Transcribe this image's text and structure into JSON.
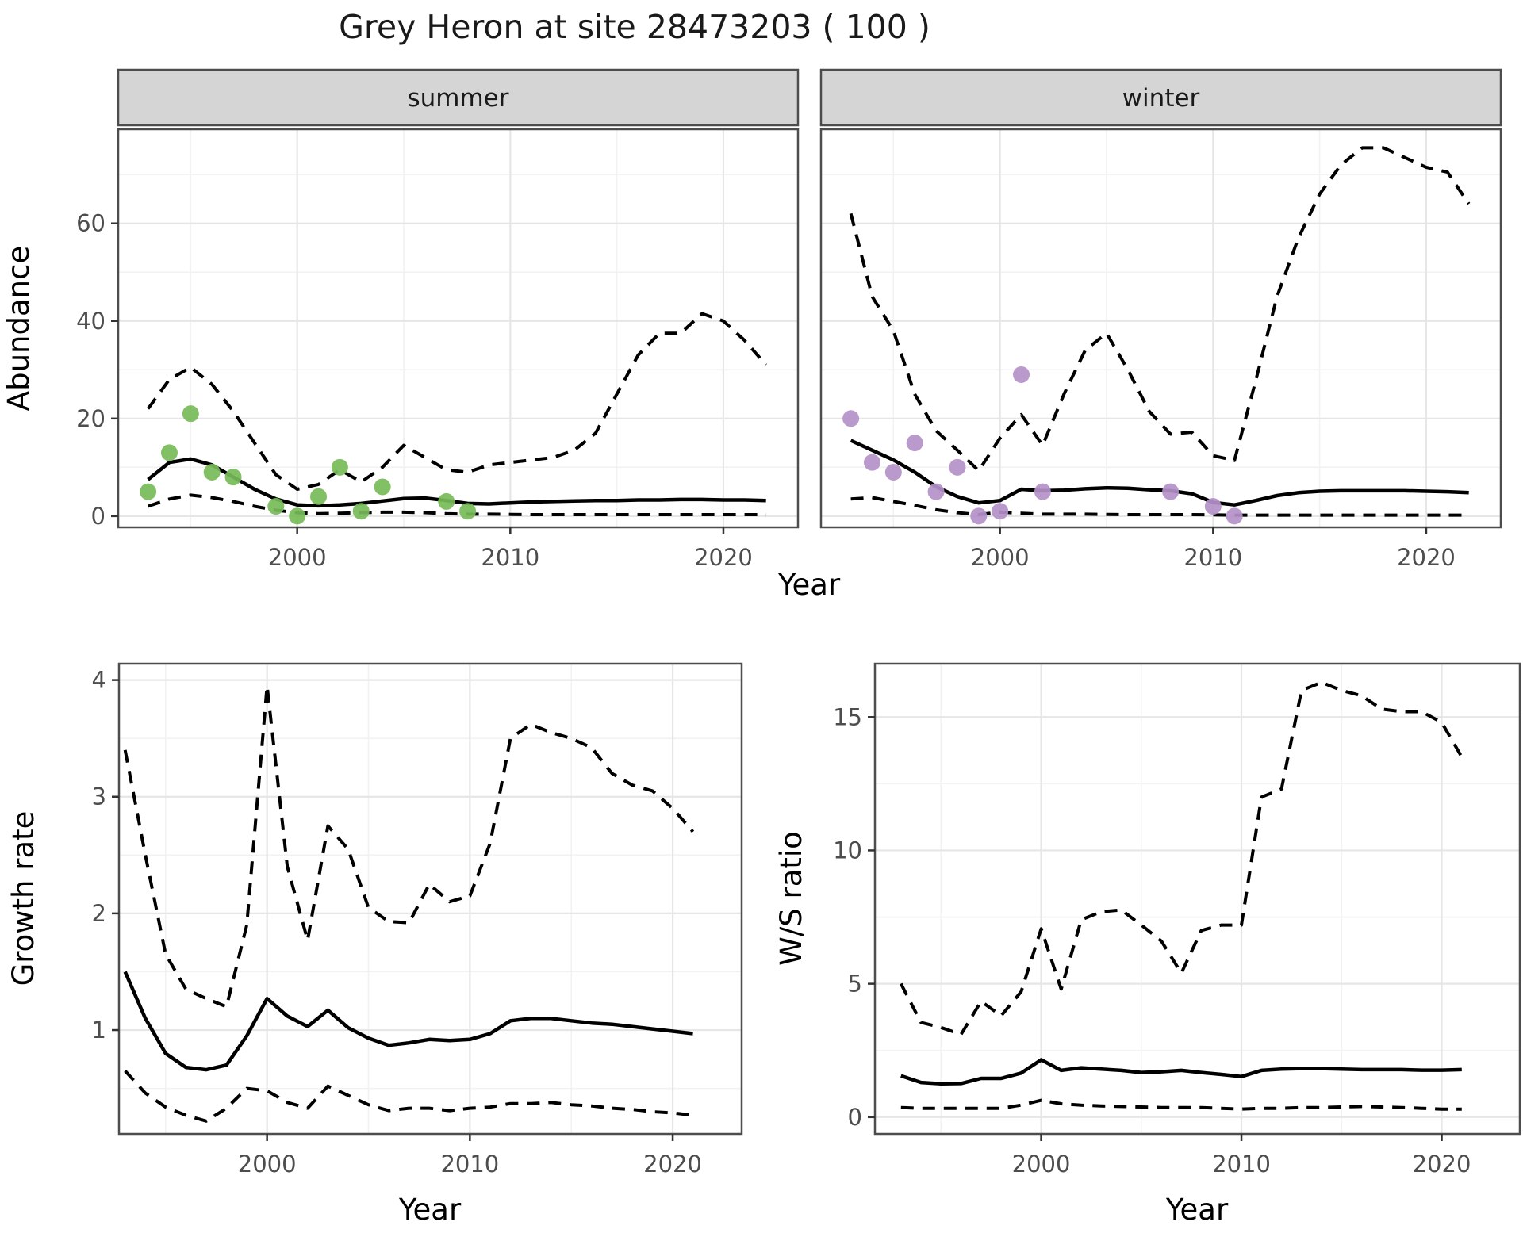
{
  "title": "Grey Heron at site 28473203 ( 100 )",
  "colors": {
    "summer_points": "#77BB58",
    "winter_points": "#B491C8",
    "line": "#000000",
    "strip_bg": "#D5D5D5",
    "panel_bg": "#FFFFFF",
    "grid_major": "#E6E6E6",
    "grid_minor": "#F2F2F2",
    "panel_border": "#4D4D4D",
    "tick_label": "#4D4D4D",
    "title_color": "#1A1A1A"
  },
  "axis_titles": {
    "top_x": "Year",
    "top_y": "Abundance",
    "bottom_left_x": "Year",
    "bottom_left_y": "Growth rate",
    "bottom_right_x": "Year",
    "bottom_right_y": "W/S ratio"
  },
  "chart_data": [
    {
      "type": "line",
      "facet_label": "summer",
      "xlabel": "Year",
      "ylabel": "Abundance",
      "x_ticks": [
        2000,
        2010,
        2020
      ],
      "y_ticks": [
        0,
        20,
        40,
        60
      ],
      "xlim": [
        1991.6,
        2023.5
      ],
      "ylim": [
        -2.3,
        79.3
      ],
      "legend": "none",
      "grid": true,
      "series": [
        {
          "name": "lower_ci",
          "style": "dashed",
          "x": [
            1993,
            1994,
            1995,
            1996,
            1997,
            1998,
            1999,
            2000,
            2001,
            2002,
            2003,
            2004,
            2005,
            2006,
            2007,
            2008,
            2009,
            2010,
            2011,
            2012,
            2013,
            2014,
            2015,
            2016,
            2017,
            2018,
            2019,
            2020,
            2021,
            2022
          ],
          "y": [
            2,
            3.5,
            4.3,
            3.8,
            3,
            2,
            1.2,
            0.7,
            0.5,
            0.6,
            0.7,
            0.8,
            0.8,
            0.7,
            0.5,
            0.4,
            0.4,
            0.35,
            0.3,
            0.3,
            0.3,
            0.3,
            0.3,
            0.3,
            0.3,
            0.3,
            0.3,
            0.3,
            0.3,
            0.3
          ]
        },
        {
          "name": "upper_ci",
          "style": "dashed",
          "x": [
            1993,
            1994,
            1995,
            1996,
            1997,
            1998,
            1999,
            2000,
            2001,
            2002,
            2003,
            2004,
            2005,
            2006,
            2007,
            2008,
            2009,
            2010,
            2011,
            2012,
            2013,
            2014,
            2015,
            2016,
            2017,
            2018,
            2019,
            2020,
            2021,
            2022
          ],
          "y": [
            22,
            28,
            30.5,
            27,
            21.5,
            15,
            8.5,
            5.5,
            6.5,
            9.5,
            7,
            10,
            14.5,
            12,
            9.5,
            9,
            10.5,
            11,
            11.5,
            12,
            13.5,
            17,
            25,
            33,
            37.5,
            37.5,
            41.5,
            40,
            36,
            31
          ]
        },
        {
          "name": "fitted_abundance",
          "style": "solid",
          "x": [
            1993,
            1994,
            1995,
            1996,
            1997,
            1998,
            1999,
            2000,
            2001,
            2002,
            2003,
            2004,
            2005,
            2006,
            2007,
            2008,
            2009,
            2010,
            2011,
            2012,
            2013,
            2014,
            2015,
            2016,
            2017,
            2018,
            2019,
            2020,
            2021,
            2022
          ],
          "y": [
            7.5,
            11,
            11.7,
            10.5,
            8,
            5.5,
            3.5,
            2.3,
            2.1,
            2.3,
            2.6,
            3.1,
            3.6,
            3.7,
            3.2,
            2.6,
            2.5,
            2.7,
            2.9,
            3.0,
            3.1,
            3.2,
            3.2,
            3.3,
            3.3,
            3.4,
            3.4,
            3.3,
            3.3,
            3.2
          ]
        },
        {
          "name": "observed_counts",
          "style": "points",
          "color": "#77BB58",
          "x": [
            1993,
            1994,
            1995,
            1996,
            1997,
            1999,
            2000,
            2001,
            2002,
            2003,
            2004,
            2007,
            2008
          ],
          "y": [
            5,
            13,
            21,
            9,
            8,
            2,
            0,
            4,
            10,
            1,
            6,
            3,
            1
          ]
        }
      ]
    },
    {
      "type": "line",
      "facet_label": "winter",
      "xlabel": "Year",
      "ylabel": "Abundance",
      "x_ticks": [
        2000,
        2010,
        2020
      ],
      "y_ticks": [
        0,
        20,
        40,
        60
      ],
      "xlim": [
        1991.6,
        2023.5
      ],
      "ylim": [
        -2.3,
        79.3
      ],
      "legend": "none",
      "grid": true,
      "series": [
        {
          "name": "lower_ci",
          "style": "dashed",
          "x": [
            1993,
            1994,
            1995,
            1996,
            1997,
            1998,
            1999,
            2000,
            2001,
            2002,
            2003,
            2004,
            2005,
            2006,
            2007,
            2008,
            2009,
            2010,
            2011,
            2012,
            2013,
            2014,
            2015,
            2016,
            2017,
            2018,
            2019,
            2020,
            2021,
            2022
          ],
          "y": [
            3.5,
            3.8,
            3.0,
            2.2,
            1.3,
            0.7,
            0.3,
            0.8,
            0.6,
            0.4,
            0.4,
            0.4,
            0.35,
            0.3,
            0.3,
            0.3,
            0.3,
            0.25,
            0.2,
            0.2,
            0.2,
            0.2,
            0.2,
            0.2,
            0.2,
            0.2,
            0.2,
            0.2,
            0.2,
            0.2
          ]
        },
        {
          "name": "upper_ci",
          "style": "dashed",
          "x": [
            1993,
            1994,
            1995,
            1996,
            1997,
            1998,
            1999,
            2000,
            2001,
            2002,
            2003,
            2004,
            2005,
            2006,
            2007,
            2008,
            2009,
            2010,
            2011,
            2012,
            2013,
            2014,
            2015,
            2016,
            2017,
            2018,
            2019,
            2020,
            2021,
            2022
          ],
          "y": [
            62,
            45,
            38,
            25,
            17.5,
            13.5,
            9.3,
            16,
            20.8,
            14.5,
            25,
            34,
            37.5,
            30,
            21.5,
            16.8,
            17.2,
            12.4,
            11.4,
            27.8,
            45,
            57,
            66,
            72,
            75.5,
            75.5,
            73.5,
            71.5,
            70.5,
            64
          ]
        },
        {
          "name": "fitted_abundance",
          "style": "solid",
          "x": [
            1993,
            1994,
            1995,
            1996,
            1997,
            1998,
            1999,
            2000,
            2001,
            2002,
            2003,
            2004,
            2005,
            2006,
            2007,
            2008,
            2009,
            2010,
            2011,
            2012,
            2013,
            2014,
            2015,
            2016,
            2017,
            2018,
            2019,
            2020,
            2021,
            2022
          ],
          "y": [
            15.5,
            13.5,
            11.5,
            9,
            6,
            4,
            2.7,
            3.2,
            5.5,
            5.2,
            5.3,
            5.6,
            5.8,
            5.7,
            5.4,
            5.2,
            4.6,
            2.8,
            2.3,
            3.2,
            4.2,
            4.8,
            5.1,
            5.2,
            5.2,
            5.2,
            5.2,
            5.1,
            5.0,
            4.8
          ]
        },
        {
          "name": "observed_counts",
          "style": "points",
          "color": "#B491C8",
          "x": [
            1993,
            1994,
            1995,
            1996,
            1997,
            1998,
            1999,
            2000,
            2001,
            2002,
            2008,
            2010,
            2011
          ],
          "y": [
            20,
            11,
            9,
            15,
            5,
            10,
            0,
            1,
            29,
            5,
            5,
            2,
            0
          ]
        }
      ]
    },
    {
      "type": "line",
      "facet_label": "",
      "xlabel": "Year",
      "ylabel": "Growth rate",
      "x_ticks": [
        2000,
        2010,
        2020
      ],
      "y_ticks": [
        1,
        2,
        3,
        4
      ],
      "xlim": [
        1992.7,
        2023.4
      ],
      "ylim": [
        0.11,
        4.14
      ],
      "legend": "none",
      "grid": true,
      "series": [
        {
          "name": "lower_ci",
          "style": "dashed",
          "x": [
            1993,
            1994,
            1995,
            1996,
            1997,
            1998,
            1999,
            2000,
            2001,
            2002,
            2003,
            2004,
            2005,
            2006,
            2007,
            2008,
            2009,
            2010,
            2011,
            2012,
            2013,
            2014,
            2015,
            2016,
            2017,
            2018,
            2019,
            2020,
            2021
          ],
          "y": [
            0.65,
            0.46,
            0.34,
            0.27,
            0.22,
            0.33,
            0.5,
            0.48,
            0.38,
            0.33,
            0.52,
            0.44,
            0.36,
            0.31,
            0.33,
            0.33,
            0.31,
            0.33,
            0.34,
            0.37,
            0.37,
            0.38,
            0.36,
            0.35,
            0.33,
            0.32,
            0.3,
            0.29,
            0.27
          ]
        },
        {
          "name": "upper_ci",
          "style": "dashed",
          "x": [
            1993,
            1994,
            1995,
            1996,
            1997,
            1998,
            1999,
            2000,
            2001,
            2002,
            2003,
            2004,
            2005,
            2006,
            2007,
            2008,
            2009,
            2010,
            2011,
            2012,
            2013,
            2014,
            2015,
            2016,
            2017,
            2018,
            2019,
            2020,
            2021
          ],
          "y": [
            3.4,
            2.5,
            1.65,
            1.35,
            1.27,
            1.2,
            1.9,
            3.95,
            2.4,
            1.77,
            2.75,
            2.55,
            2.05,
            1.93,
            1.92,
            2.25,
            2.1,
            2.15,
            2.6,
            3.5,
            3.62,
            3.55,
            3.5,
            3.42,
            3.2,
            3.1,
            3.05,
            2.9,
            2.7
          ]
        },
        {
          "name": "growth_rate",
          "style": "solid",
          "x": [
            1993,
            1994,
            1995,
            1996,
            1997,
            1998,
            1999,
            2000,
            2001,
            2002,
            2003,
            2004,
            2005,
            2006,
            2007,
            2008,
            2009,
            2010,
            2011,
            2012,
            2013,
            2014,
            2015,
            2016,
            2017,
            2018,
            2019,
            2020,
            2021
          ],
          "y": [
            1.5,
            1.1,
            0.8,
            0.68,
            0.66,
            0.7,
            0.95,
            1.27,
            1.12,
            1.03,
            1.17,
            1.02,
            0.93,
            0.87,
            0.89,
            0.92,
            0.91,
            0.92,
            0.97,
            1.08,
            1.1,
            1.1,
            1.08,
            1.06,
            1.05,
            1.03,
            1.01,
            0.99,
            0.97
          ]
        }
      ]
    },
    {
      "type": "line",
      "facet_label": "",
      "xlabel": "Year",
      "ylabel": "W/S ratio",
      "x_ticks": [
        2000,
        2010,
        2020
      ],
      "y_ticks": [
        0,
        5,
        10,
        15
      ],
      "xlim": [
        1991.7,
        2023.9
      ],
      "ylim": [
        -0.63,
        17.0
      ],
      "legend": "none",
      "grid": true,
      "series": [
        {
          "name": "lower_ci",
          "style": "dashed",
          "x": [
            1993,
            1994,
            1995,
            1996,
            1997,
            1998,
            1999,
            2000,
            2001,
            2002,
            2003,
            2004,
            2005,
            2006,
            2007,
            2008,
            2009,
            2010,
            2011,
            2012,
            2013,
            2014,
            2015,
            2016,
            2017,
            2018,
            2019,
            2020,
            2021
          ],
          "y": [
            0.36,
            0.33,
            0.33,
            0.33,
            0.33,
            0.33,
            0.45,
            0.63,
            0.5,
            0.45,
            0.42,
            0.4,
            0.38,
            0.36,
            0.36,
            0.36,
            0.33,
            0.3,
            0.33,
            0.33,
            0.36,
            0.36,
            0.38,
            0.4,
            0.38,
            0.36,
            0.33,
            0.3,
            0.3
          ]
        },
        {
          "name": "upper_ci",
          "style": "dashed",
          "x": [
            1993,
            1994,
            1995,
            1996,
            1997,
            1998,
            1999,
            2000,
            2001,
            2002,
            2003,
            2004,
            2005,
            2006,
            2007,
            2008,
            2009,
            2010,
            2011,
            2012,
            2013,
            2014,
            2015,
            2016,
            2017,
            2018,
            2019,
            2020,
            2021
          ],
          "y": [
            5.0,
            3.55,
            3.36,
            3.1,
            4.34,
            3.8,
            4.7,
            7.06,
            4.8,
            7.4,
            7.7,
            7.77,
            7.2,
            6.6,
            5.4,
            7.0,
            7.2,
            7.2,
            12.0,
            12.3,
            16.0,
            16.3,
            16.0,
            15.8,
            15.3,
            15.2,
            15.2,
            14.8,
            13.5
          ]
        },
        {
          "name": "ws_ratio",
          "style": "solid",
          "x": [
            1993,
            1994,
            1995,
            1996,
            1997,
            1998,
            1999,
            2000,
            2001,
            2002,
            2003,
            2004,
            2005,
            2006,
            2007,
            2008,
            2009,
            2010,
            2011,
            2012,
            2013,
            2014,
            2015,
            2016,
            2017,
            2018,
            2019,
            2020,
            2021
          ],
          "y": [
            1.55,
            1.3,
            1.25,
            1.26,
            1.45,
            1.45,
            1.65,
            2.15,
            1.75,
            1.85,
            1.8,
            1.75,
            1.67,
            1.7,
            1.75,
            1.67,
            1.6,
            1.52,
            1.75,
            1.8,
            1.82,
            1.82,
            1.8,
            1.78,
            1.78,
            1.78,
            1.76,
            1.76,
            1.78
          ]
        }
      ]
    }
  ]
}
